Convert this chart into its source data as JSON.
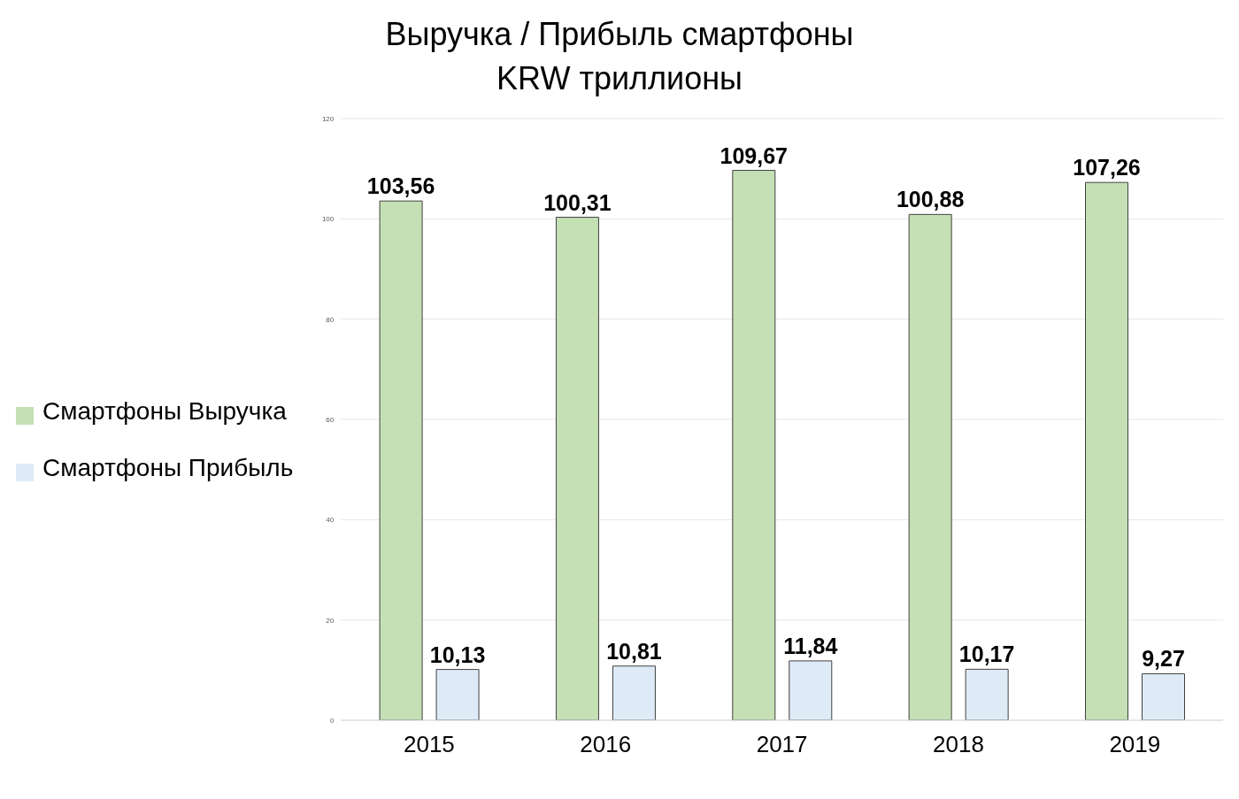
{
  "chart_data": {
    "type": "bar",
    "title": "Выручка / Прибыль смартфоны",
    "subtitle": "KRW триллионы",
    "categories": [
      "2015",
      "2016",
      "2017",
      "2018",
      "2019"
    ],
    "series": [
      {
        "name": "Смартфоны Выручка",
        "color": "#c5e0b4",
        "values": [
          103.56,
          100.31,
          109.67,
          100.88,
          107.26
        ],
        "value_labels": [
          "103,56",
          "100,31",
          "109,67",
          "100,88",
          "107,26"
        ]
      },
      {
        "name": "Смартфоны Прибыль",
        "color": "#deebf7",
        "values": [
          10.13,
          10.81,
          11.84,
          10.17,
          9.27
        ],
        "value_labels": [
          "10,13",
          "10,81",
          "11,84",
          "10,17",
          "9,27"
        ]
      }
    ],
    "ylim": [
      0,
      120
    ],
    "yticks": [
      0,
      20,
      40,
      60,
      80,
      100,
      120
    ],
    "grid": "y",
    "legend": "left"
  }
}
